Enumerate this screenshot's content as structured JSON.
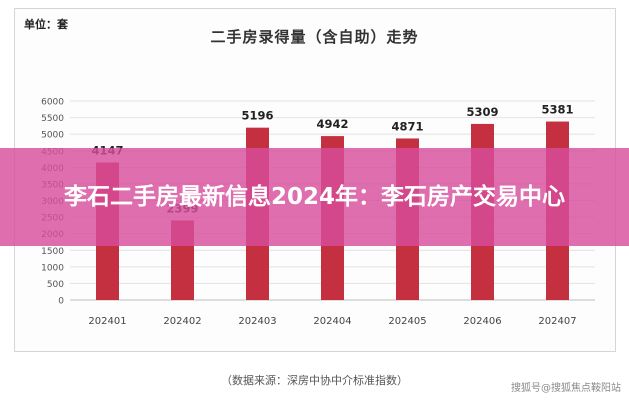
{
  "unit_label": "单位：套",
  "overlay_title": "李石二手房最新信息2024年：李石房产交易中心",
  "source_note": "（数据来源：深房中协中介标准指数）",
  "watermark": "搜狐号@搜狐焦点鞍阳站",
  "colors": {
    "bar": "#c4303f",
    "banner": "#d84e9c",
    "grid": "#e2e2e2",
    "label": "#222222"
  },
  "chart_data": {
    "type": "bar",
    "title": "二手房录得量（含自助）走势",
    "xlabel": "",
    "ylabel": "",
    "categories": [
      "202401",
      "202402",
      "202403",
      "202404",
      "202405",
      "202406",
      "202407"
    ],
    "values": [
      4147,
      2399,
      5196,
      4942,
      4871,
      5309,
      5381
    ],
    "ylim": [
      0,
      6000
    ],
    "yticks": [
      0,
      500,
      1000,
      1500,
      2000,
      2500,
      3000,
      3500,
      4000,
      4500,
      5000,
      5500,
      6000
    ],
    "grid": true,
    "legend": "none"
  }
}
